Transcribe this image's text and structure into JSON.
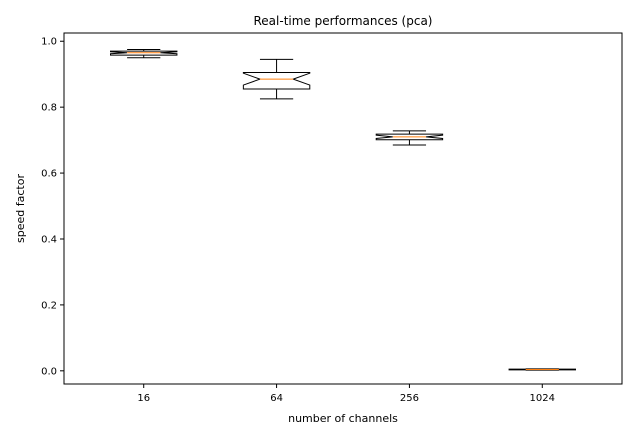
{
  "chart_data": {
    "type": "box",
    "title": "Real-time performances (pca)",
    "xlabel": "number of channels",
    "ylabel": "speed factor",
    "categories": [
      "16",
      "64",
      "256",
      "1024"
    ],
    "ylim": [
      -0.04,
      1.025
    ],
    "yticks": [
      0.0,
      0.2,
      0.4,
      0.6,
      0.8,
      1.0
    ],
    "ytick_labels": [
      "0.0",
      "0.2",
      "0.4",
      "0.6",
      "0.8",
      "1.0"
    ],
    "grid": false,
    "notched": true,
    "boxes": [
      {
        "category": "16",
        "whisker_low": 0.95,
        "q1": 0.958,
        "median": 0.965,
        "q3": 0.97,
        "whisker_high": 0.975,
        "notch_low": 0.962,
        "notch_high": 0.968
      },
      {
        "category": "64",
        "whisker_low": 0.825,
        "q1": 0.855,
        "median": 0.885,
        "q3": 0.905,
        "whisker_high": 0.945,
        "notch_low": 0.867,
        "notch_high": 0.903
      },
      {
        "category": "256",
        "whisker_low": 0.685,
        "q1": 0.701,
        "median": 0.71,
        "q3": 0.718,
        "whisker_high": 0.728,
        "notch_low": 0.705,
        "notch_high": 0.715
      },
      {
        "category": "1024",
        "whisker_low": 0.002,
        "q1": 0.003,
        "median": 0.004,
        "q3": 0.005,
        "whisker_high": 0.006,
        "notch_low": 0.0035,
        "notch_high": 0.0045
      }
    ],
    "colors": {
      "box": "#000000",
      "median": "#ff7f0e",
      "axes": "#000000",
      "background": "#ffffff"
    }
  }
}
